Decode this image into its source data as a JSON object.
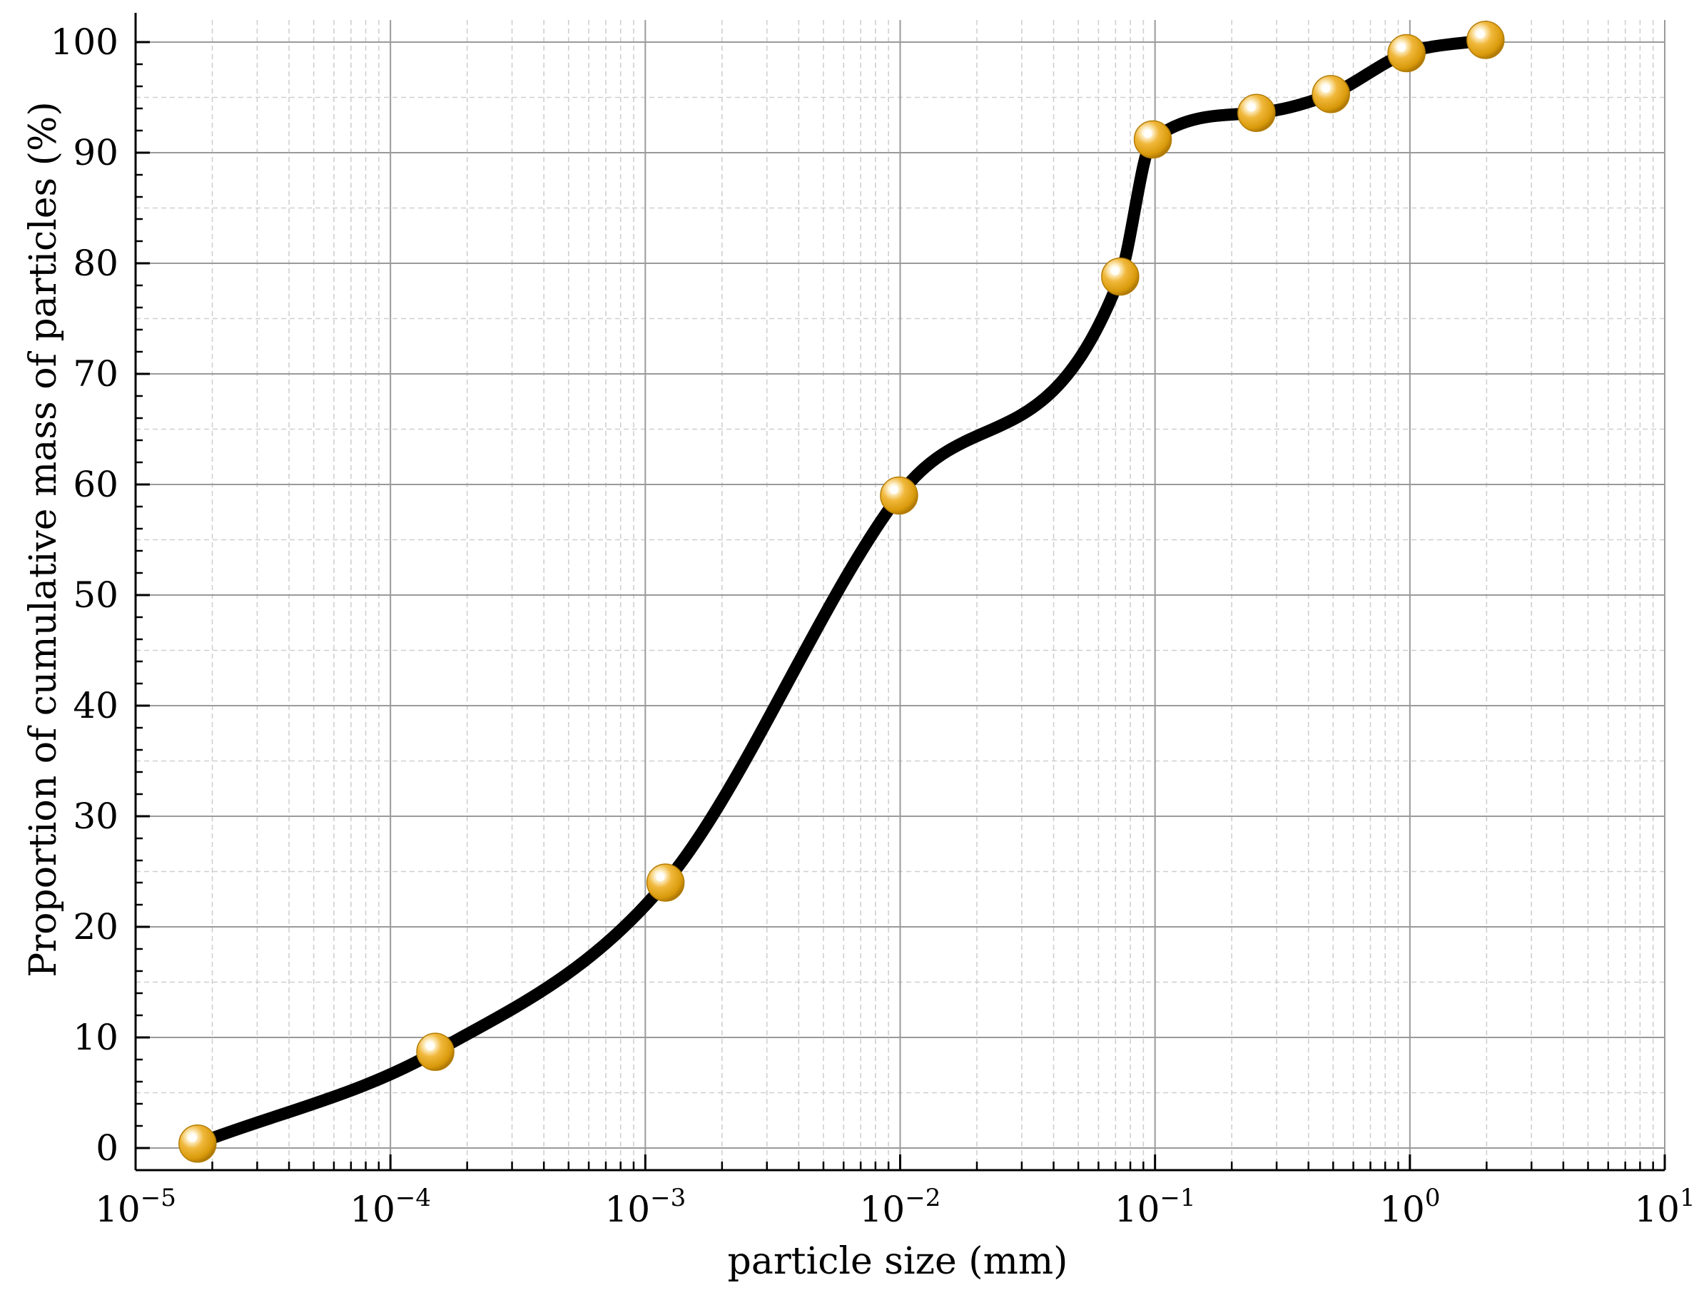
{
  "chart_data": {
    "type": "line",
    "xlabel": "particle size (mm)",
    "ylabel": "Proportion of cumulative mass of particles (%)",
    "xscale": "log",
    "xlim": [
      1e-05,
      10
    ],
    "ylim": [
      -2,
      102
    ],
    "grid": true,
    "minor_grid": true,
    "legend": "none",
    "x_ticks": [
      {
        "base": "10",
        "exp": "−5"
      },
      {
        "base": "10",
        "exp": "−4"
      },
      {
        "base": "10",
        "exp": "−3"
      },
      {
        "base": "10",
        "exp": "−2"
      },
      {
        "base": "10",
        "exp": "−1"
      },
      {
        "base": "10",
        "exp": "0"
      },
      {
        "base": "10",
        "exp": "1"
      }
    ],
    "y_ticks": [
      "0",
      "10",
      "20",
      "30",
      "40",
      "50",
      "60",
      "70",
      "80",
      "90",
      "100"
    ],
    "series": [
      {
        "x": [
          1.75e-05,
          0.00015,
          0.0012,
          0.0099,
          0.073,
          0.098,
          0.25,
          0.49,
          0.97,
          1.98
        ],
        "y": [
          0.4,
          8.7,
          24.0,
          59.0,
          78.8,
          91.2,
          93.6,
          95.3,
          99.0,
          100.2
        ],
        "line_color": "#000000",
        "marker_color": "#D99A0B",
        "marker_highlight": "#FFF6DA",
        "marker": "sphere"
      }
    ]
  }
}
